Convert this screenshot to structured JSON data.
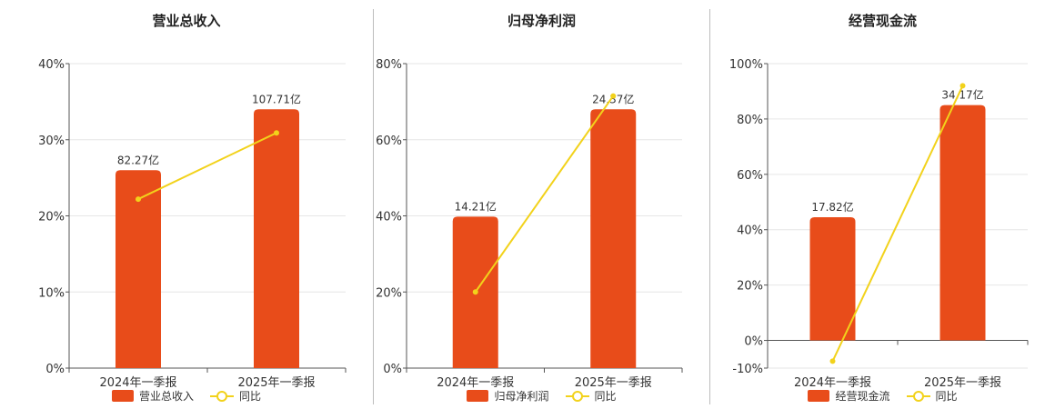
{
  "legend": {
    "line_label": "同比"
  },
  "colors": {
    "bar": "#e84c1a",
    "line": "#f2d21b",
    "grid": "#e6e6e6",
    "axis": "#555555"
  },
  "chart_data": [
    {
      "type": "bar",
      "title": "营业总收入",
      "categories": [
        "2024年一季报",
        "2025年一季报"
      ],
      "series": [
        {
          "name": "营业总收入",
          "type": "bar",
          "values": [
            26,
            34
          ],
          "labels": [
            "82.27亿",
            "107.71亿"
          ]
        },
        {
          "name": "同比",
          "type": "line",
          "values": [
            22.2,
            30.9
          ]
        }
      ],
      "yticks": [
        "0%",
        "10%",
        "20%",
        "30%",
        "40%"
      ],
      "ylim": [
        0,
        40
      ]
    },
    {
      "type": "bar",
      "title": "归母净利润",
      "categories": [
        "2024年一季报",
        "2025年一季报"
      ],
      "series": [
        {
          "name": "归母净利润",
          "type": "bar",
          "values": [
            39.8,
            68.0
          ],
          "labels": [
            "14.21亿",
            "24.37亿"
          ]
        },
        {
          "name": "同比",
          "type": "line",
          "values": [
            20.0,
            71.5
          ]
        }
      ],
      "yticks": [
        "0%",
        "20%",
        "40%",
        "60%",
        "80%"
      ],
      "ylim": [
        0,
        80
      ]
    },
    {
      "type": "bar",
      "title": "经营现金流",
      "categories": [
        "2024年一季报",
        "2025年一季报"
      ],
      "series": [
        {
          "name": "经营现金流",
          "type": "bar",
          "values": [
            44.5,
            85.0
          ],
          "labels": [
            "17.82亿",
            "34.17亿"
          ]
        },
        {
          "name": "同比",
          "type": "line",
          "values": [
            -7.5,
            92.0
          ]
        }
      ],
      "yticks": [
        "-10%",
        "0%",
        "20%",
        "40%",
        "60%",
        "80%",
        "100%"
      ],
      "ylim": [
        -10,
        100
      ]
    }
  ]
}
